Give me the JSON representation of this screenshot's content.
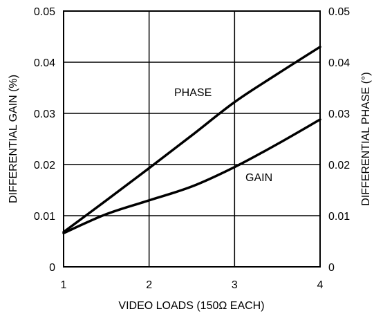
{
  "chart_data": {
    "type": "line",
    "title": "",
    "xlabel": "VIDEO LOADS (150Ω EACH)",
    "ylabel": "DIFFERENTIAL GAIN (%)",
    "y2label": "DIFFERENTIAL PHASE (°)",
    "xlim": [
      1,
      4
    ],
    "ylim": [
      0,
      0.05
    ],
    "y2lim": [
      0,
      0.05
    ],
    "grid": true,
    "x_ticks": [
      "1",
      "2",
      "3",
      "4"
    ],
    "y_ticks": [
      "0",
      "0.01",
      "0.02",
      "0.03",
      "0.04",
      "0.05"
    ],
    "y2_ticks": [
      "0",
      "0.01",
      "0.02",
      "0.03",
      "0.04",
      "0.05"
    ],
    "series": [
      {
        "name": "PHASE",
        "axis": "right",
        "x": [
          1,
          1.5,
          2,
          2.5,
          3,
          3.5,
          4
        ],
        "y": [
          0.0068,
          0.013,
          0.0193,
          0.0257,
          0.0322,
          0.0377,
          0.043
        ]
      },
      {
        "name": "GAIN",
        "axis": "left",
        "x": [
          1,
          1.5,
          2,
          2.5,
          3,
          3.5,
          4
        ],
        "y": [
          0.0066,
          0.0103,
          0.013,
          0.0157,
          0.0195,
          0.024,
          0.0288
        ]
      }
    ],
    "annotations": [
      "PHASE",
      "GAIN"
    ]
  }
}
